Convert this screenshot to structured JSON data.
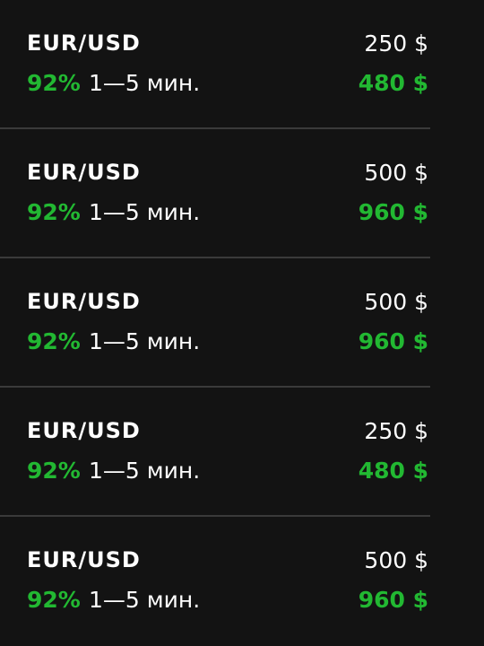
{
  "trades": [
    {
      "pair": "EUR/USD",
      "amount": "250 $",
      "percent": "92%",
      "duration": "1—5 мин.",
      "payout": "480 $"
    },
    {
      "pair": "EUR/USD",
      "amount": "500 $",
      "percent": "92%",
      "duration": "1—5 мин.",
      "payout": "960 $"
    },
    {
      "pair": "EUR/USD",
      "amount": "500 $",
      "percent": "92%",
      "duration": "1—5 мин.",
      "payout": "960 $"
    },
    {
      "pair": "EUR/USD",
      "amount": "250 $",
      "percent": "92%",
      "duration": "1—5 мин.",
      "payout": "480 $"
    },
    {
      "pair": "EUR/USD",
      "amount": "500 $",
      "percent": "92%",
      "duration": "1—5 мин.",
      "payout": "960 $"
    }
  ],
  "colors": {
    "background": "#131313",
    "accent_green": "#22b832",
    "divider": "#3a3a3a",
    "text": "#ffffff"
  }
}
